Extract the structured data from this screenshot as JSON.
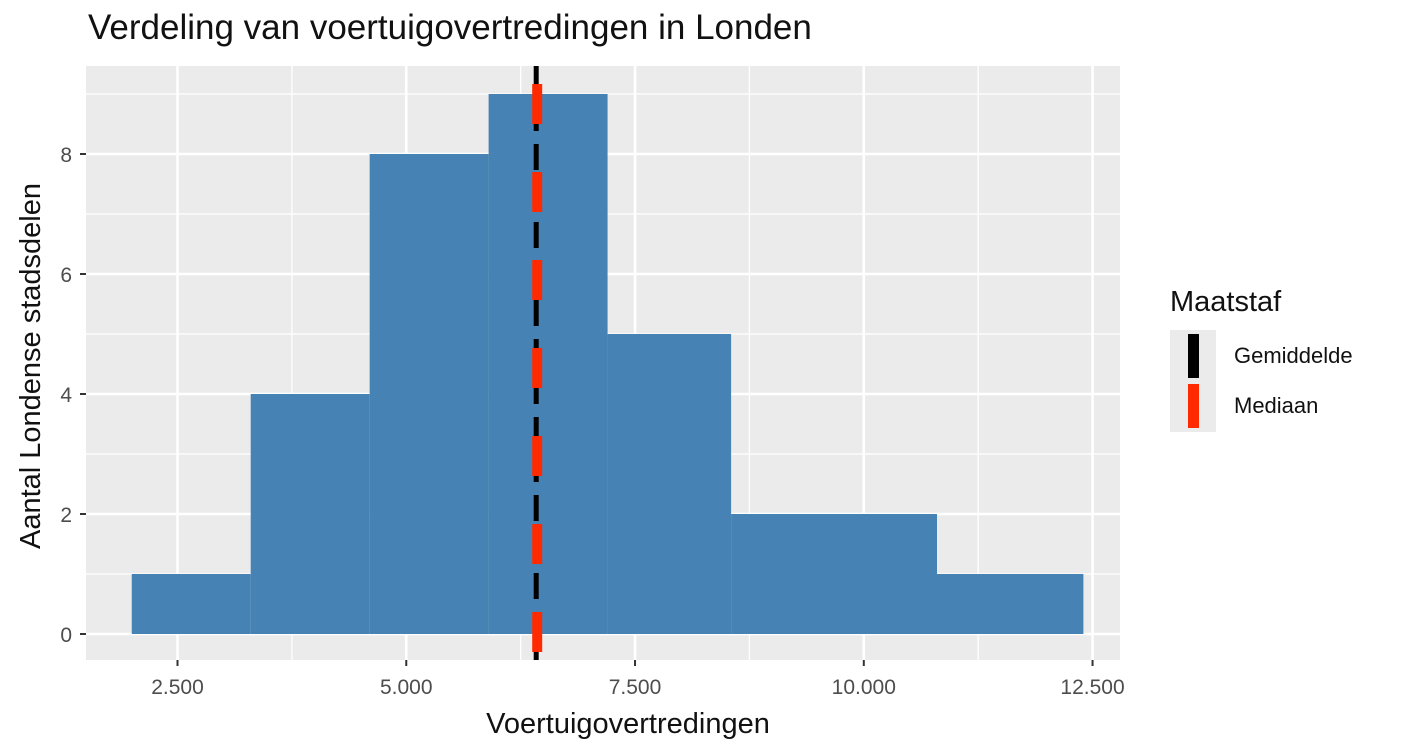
{
  "chart_data": {
    "type": "histogram",
    "title": "Verdeling van voertuigovertredingen in Londen",
    "xlabel": "Voertuigovertredingen",
    "ylabel": "Aantal Londense stadsdelen",
    "xlim": [
      1500,
      12800
    ],
    "ylim": [
      0,
      9.3
    ],
    "x_ticks": [
      2500,
      5000,
      7500,
      10000,
      12500
    ],
    "x_tick_labels": [
      "2.500",
      "5.000",
      "7.500",
      "10.000",
      "12.500"
    ],
    "y_ticks": [
      0,
      2,
      4,
      6,
      8
    ],
    "y_tick_labels": [
      "0",
      "2",
      "4",
      "6",
      "8"
    ],
    "bins": [
      {
        "x0": 2000,
        "x1": 3300,
        "count": 1
      },
      {
        "x0": 3300,
        "x1": 4600,
        "count": 4
      },
      {
        "x0": 4600,
        "x1": 5900,
        "count": 8
      },
      {
        "x0": 5900,
        "x1": 7200,
        "count": 9
      },
      {
        "x0": 7200,
        "x1": 8550,
        "count": 5
      },
      {
        "x0": 8550,
        "x1": 10800,
        "count": 2
      },
      {
        "x0": 10800,
        "x1": 12400,
        "count": 1
      }
    ],
    "bar_color": "#4682b4",
    "panel_background": "#ebebeb",
    "grid": true,
    "reference_lines": [
      {
        "name": "Gemiddelde",
        "x": 6420,
        "color": "#000000",
        "style": "dashed"
      },
      {
        "name": "Mediaan",
        "x": 6420,
        "color": "#ff2a00",
        "style": "dashed"
      }
    ],
    "legend": {
      "title": "Maatstaf",
      "position": "right",
      "items": [
        {
          "label": "Gemiddelde",
          "color": "#000000"
        },
        {
          "label": "Mediaan",
          "color": "#ff2a00"
        }
      ]
    }
  }
}
